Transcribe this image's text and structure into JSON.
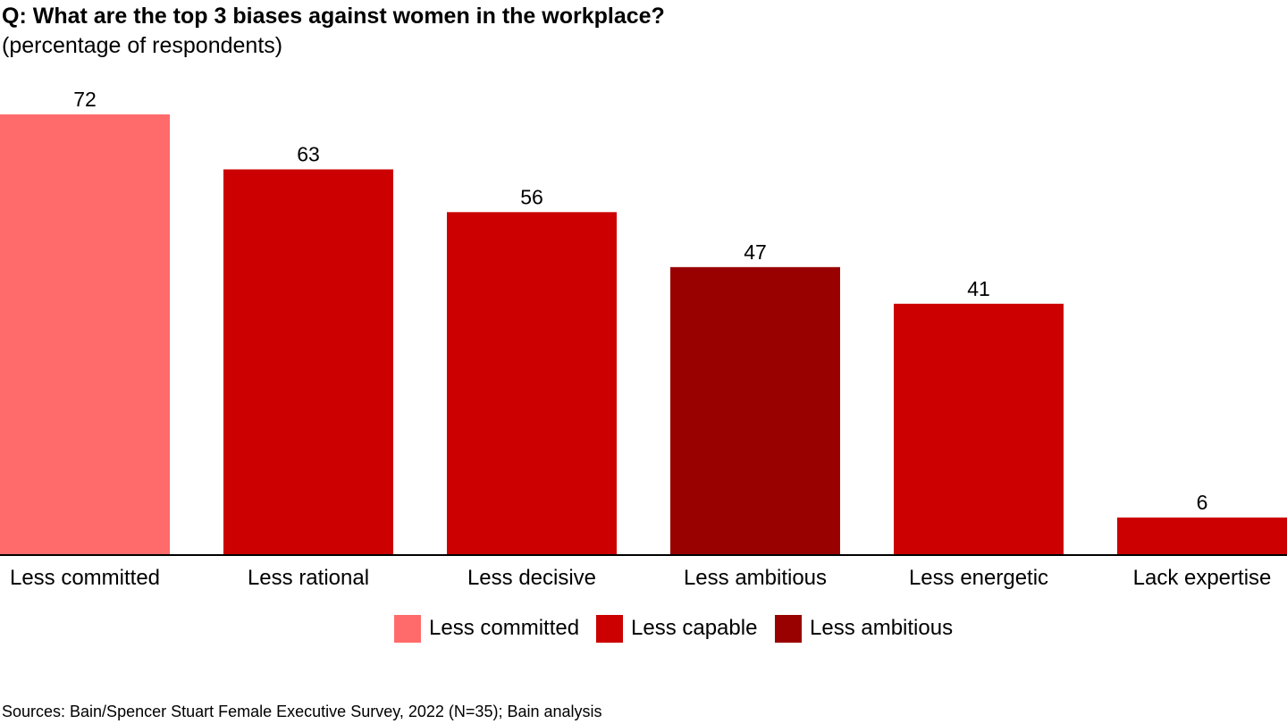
{
  "chart_data": {
    "type": "bar",
    "title": "Q: What are the top 3 biases against women in the workplace?",
    "subtitle": "(percentage of respondents)",
    "categories": [
      "Less committed",
      "Less rational",
      "Less decisive",
      "Less ambitious",
      "Less energetic",
      "Lack expertise"
    ],
    "values": [
      72,
      63,
      56,
      47,
      41,
      6
    ],
    "bar_groups": [
      "Less committed",
      "Less capable",
      "Less capable",
      "Less ambitious",
      "Less capable",
      "Less capable"
    ],
    "data_labels": [
      "72",
      "63",
      "56",
      "47",
      "41",
      "6"
    ],
    "legend": [
      {
        "label": "Less committed",
        "color": "#FF6B6B"
      },
      {
        "label": "Less capable",
        "color": "#CC0000"
      },
      {
        "label": "Less ambitious",
        "color": "#990000"
      }
    ],
    "legend_position": "bottom-center",
    "ylim": [
      0,
      72
    ],
    "grid": false,
    "source": "Sources: Bain/Spencer Stuart Female Executive Survey, 2022 (N=35); Bain analysis"
  }
}
